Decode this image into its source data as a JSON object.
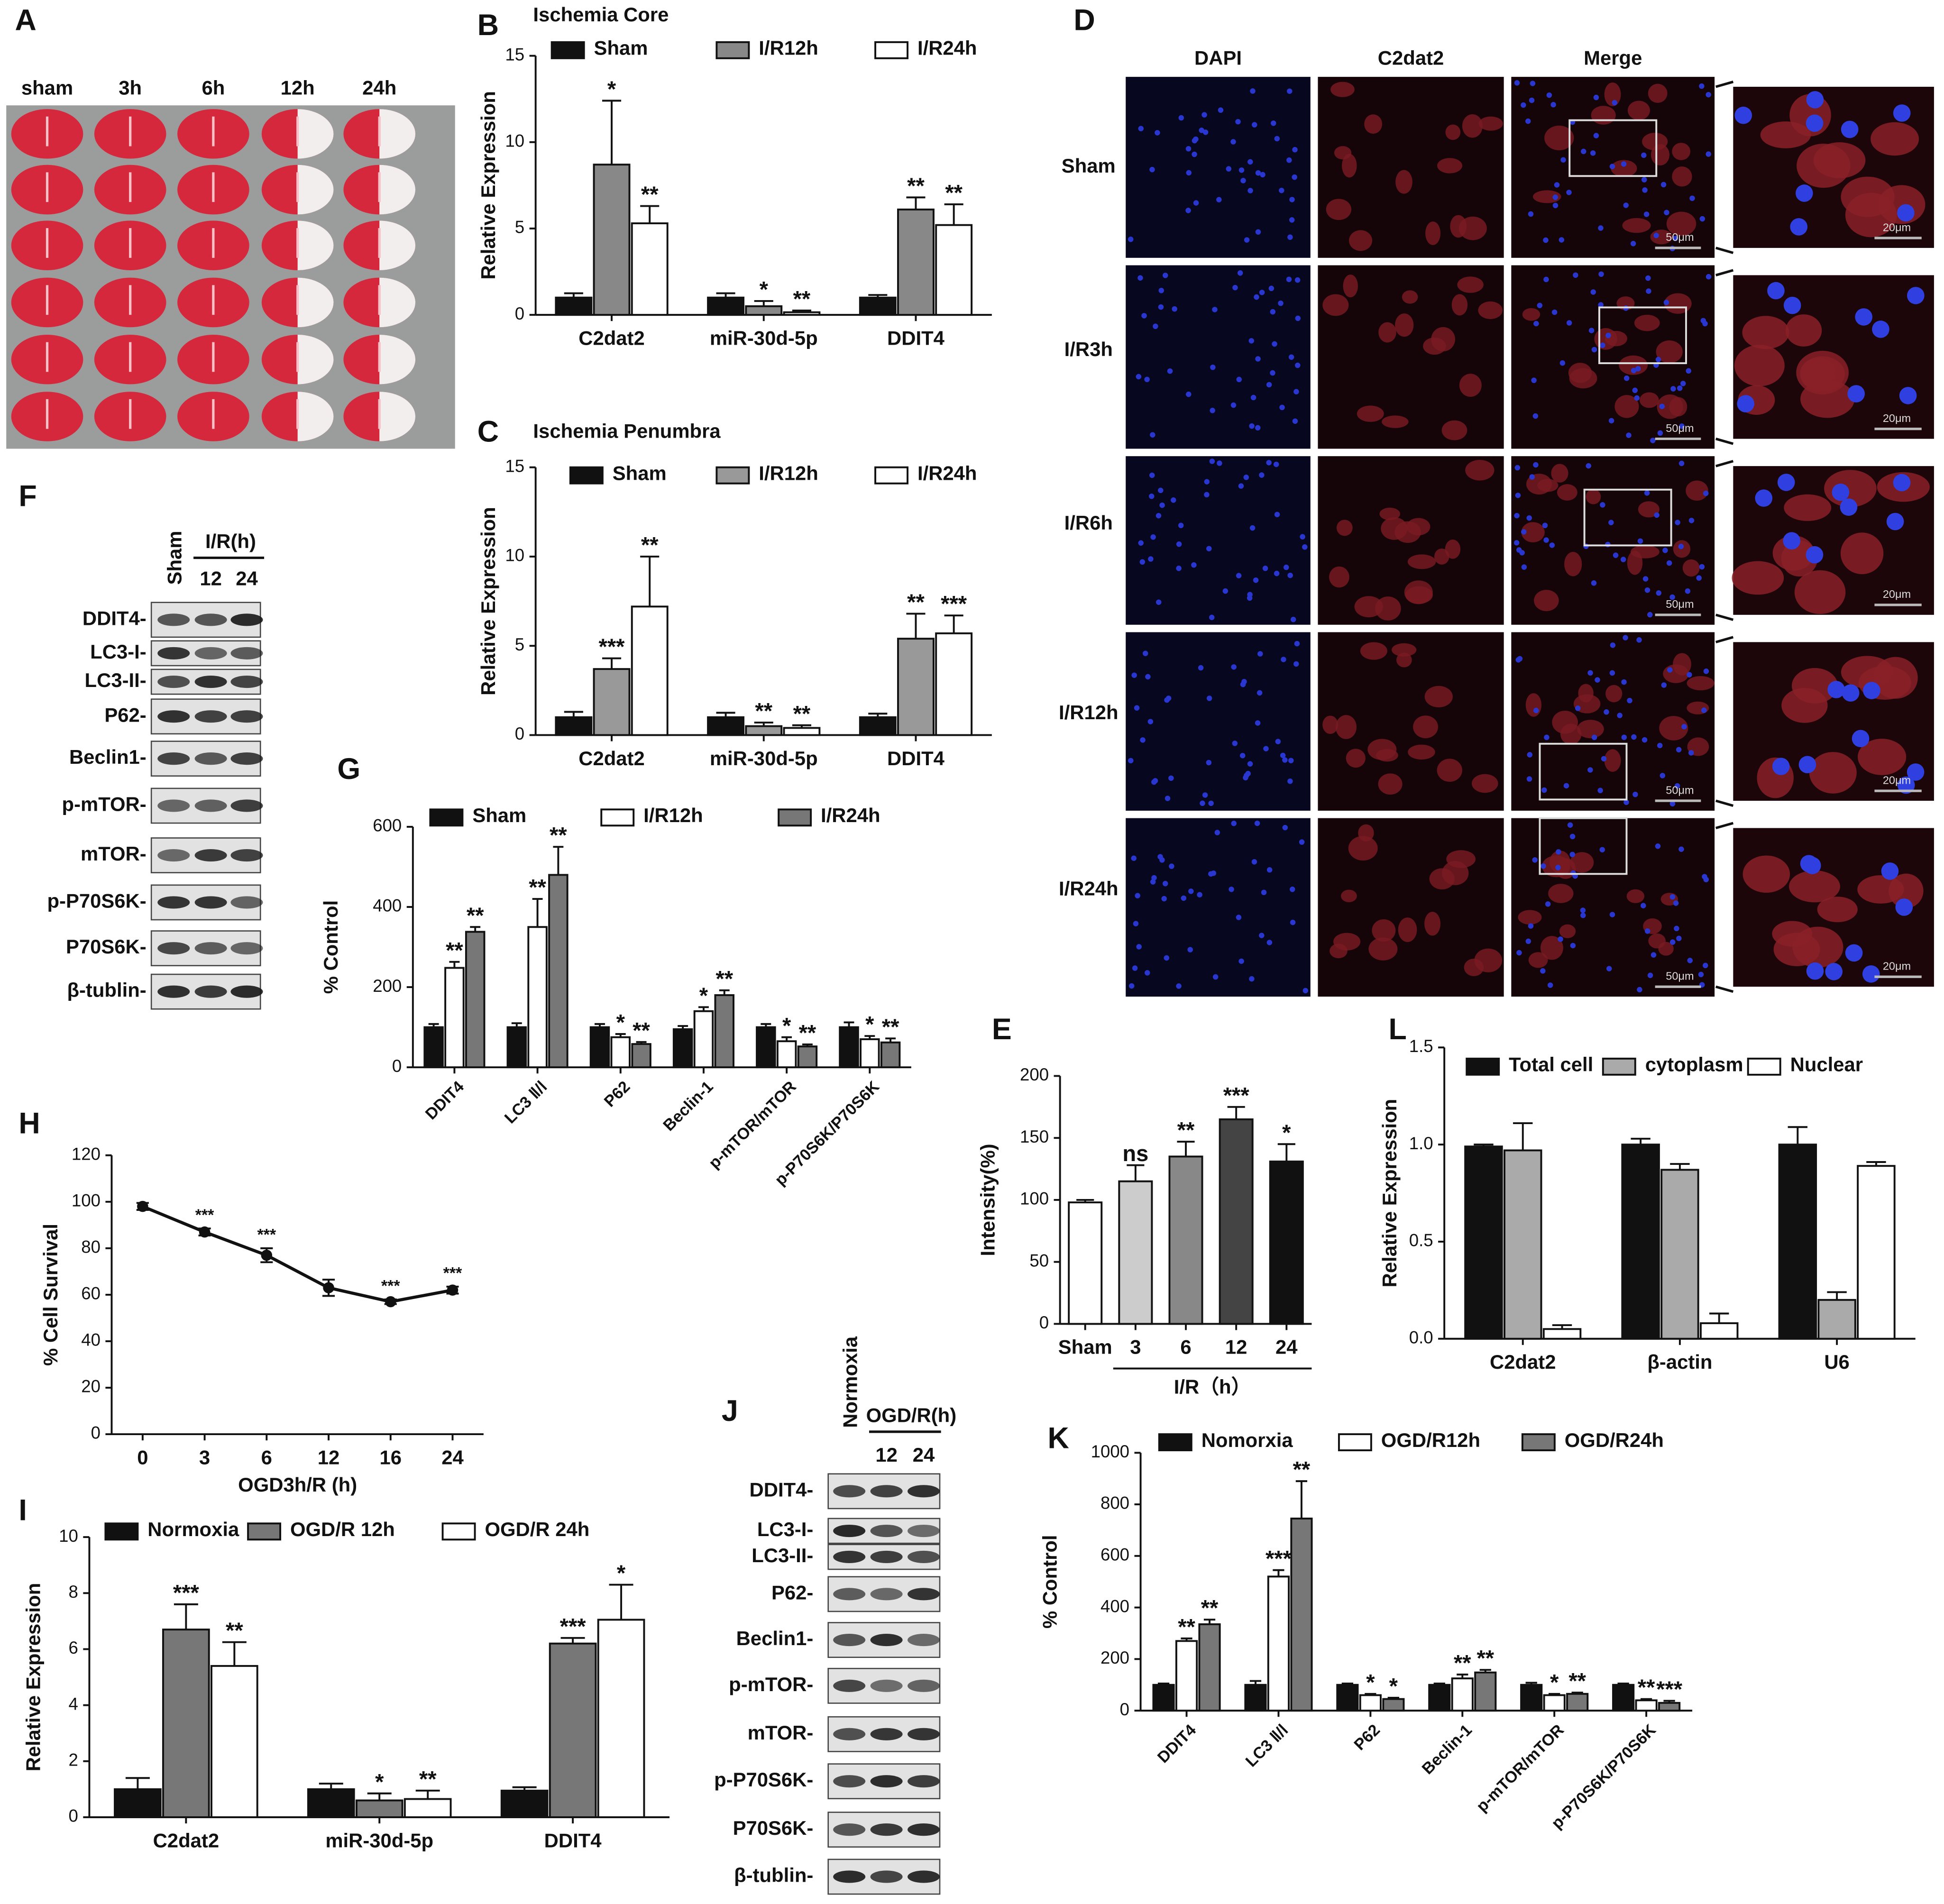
{
  "chart_data": [
    {
      "type": "bar",
      "panel": "B",
      "title": "Ischemia Core",
      "ylabel": "Relative Expression",
      "categories": [
        "C2dat2",
        "miR-30d-5p",
        "DDIT4"
      ],
      "series": [
        {
          "name": "Sham",
          "color": "#111111",
          "values": [
            1.0,
            1.0,
            1.0
          ],
          "errors": [
            0.25,
            0.25,
            0.15
          ],
          "annotations": [
            null,
            null,
            null
          ]
        },
        {
          "name": "I/R12h",
          "color": "#888888",
          "values": [
            8.7,
            0.5,
            6.1
          ],
          "errors": [
            3.7,
            0.3,
            0.7
          ],
          "annotations": [
            "*",
            "*",
            "**"
          ]
        },
        {
          "name": "I/R24h",
          "color": "#ffffff",
          "values": [
            5.3,
            0.15,
            5.2
          ],
          "errors": [
            1.0,
            0.1,
            1.2
          ],
          "annotations": [
            "**",
            "**",
            "**"
          ]
        }
      ],
      "ylim": [
        0,
        15
      ],
      "yticks": [
        0,
        5,
        10,
        15
      ],
      "legend": "top"
    },
    {
      "type": "bar",
      "panel": "C",
      "title": "Ischemia Penumbra",
      "ylabel": "Relative Expression",
      "categories": [
        "C2dat2",
        "miR-30d-5p",
        "DDIT4"
      ],
      "series": [
        {
          "name": "Sham",
          "color": "#111111",
          "values": [
            1.0,
            1.0,
            1.0
          ],
          "errors": [
            0.3,
            0.25,
            0.2
          ],
          "annotations": [
            null,
            null,
            null
          ]
        },
        {
          "name": "I/R12h",
          "color": "#999999",
          "values": [
            3.7,
            0.5,
            5.4
          ],
          "errors": [
            0.6,
            0.2,
            1.4
          ],
          "annotations": [
            "***",
            "**",
            "**"
          ]
        },
        {
          "name": "I/R24h",
          "color": "#ffffff",
          "values": [
            7.2,
            0.4,
            5.7
          ],
          "errors": [
            2.8,
            0.15,
            1.0
          ],
          "annotations": [
            "**",
            "**",
            "***"
          ]
        }
      ],
      "ylim": [
        0,
        15
      ],
      "yticks": [
        0,
        5,
        10,
        15
      ],
      "legend": "top"
    },
    {
      "type": "bar",
      "panel": "G",
      "ylabel": "% Control",
      "categories": [
        "DDIT4",
        "LC3 Ⅱ/Ⅰ",
        "P62",
        "Beclin-1",
        "p-mTOR/mTOR",
        "p-P70S6K/P70S6K"
      ],
      "series": [
        {
          "name": "Sham",
          "color": "#111111",
          "values": [
            100,
            100,
            100,
            95,
            100,
            100
          ],
          "errors": [
            8,
            10,
            8,
            8,
            8,
            12
          ],
          "annotations": [
            null,
            null,
            null,
            null,
            null,
            null
          ]
        },
        {
          "name": "I/R12h",
          "color": "#ffffff",
          "values": [
            248,
            350,
            75,
            140,
            65,
            70
          ],
          "errors": [
            15,
            70,
            8,
            10,
            10,
            8
          ],
          "annotations": [
            "**",
            "**",
            "*",
            "*",
            "*",
            "*"
          ]
        },
        {
          "name": "I/R24h",
          "color": "#777777",
          "values": [
            338,
            480,
            58,
            180,
            52,
            62
          ],
          "errors": [
            12,
            70,
            5,
            12,
            5,
            10
          ],
          "annotations": [
            "**",
            "**",
            "**",
            "**",
            "**",
            "**"
          ]
        }
      ],
      "ylim": [
        0,
        600
      ],
      "yticks": [
        0,
        200,
        400,
        600
      ],
      "legend": "top"
    },
    {
      "type": "bar",
      "panel": "E",
      "ylabel": "Intensity(%)",
      "x_group_label": "I/R（h）",
      "categories": [
        "Sham",
        "3",
        "6",
        "12",
        "24"
      ],
      "values": [
        98,
        115,
        135,
        165,
        131
      ],
      "errors": [
        2,
        13,
        12,
        10,
        14
      ],
      "annotations": [
        null,
        "ns",
        "**",
        "***",
        "*"
      ],
      "colors": [
        "#ffffff",
        "#cccccc",
        "#888888",
        "#444444",
        "#111111"
      ],
      "ylim": [
        0,
        200
      ],
      "yticks": [
        0,
        50,
        100,
        150,
        200
      ]
    },
    {
      "type": "bar",
      "panel": "L",
      "ylabel": "Relative Expression",
      "categories": [
        "C2dat2",
        "β-actin",
        "U6"
      ],
      "series": [
        {
          "name": "Total cell",
          "color": "#111111",
          "values": [
            0.99,
            1.0,
            1.0
          ],
          "errors": [
            0.01,
            0.03,
            0.09
          ]
        },
        {
          "name": "cytoplasm",
          "color": "#aaaaaa",
          "values": [
            0.97,
            0.87,
            0.2
          ],
          "errors": [
            0.14,
            0.03,
            0.04
          ]
        },
        {
          "name": "Nuclear",
          "color": "#ffffff",
          "values": [
            0.05,
            0.08,
            0.89
          ],
          "errors": [
            0.02,
            0.05,
            0.02
          ]
        }
      ],
      "ylim": [
        0,
        1.5
      ],
      "yticks": [
        {
          "value": 0,
          "label": "0.0"
        },
        0.5,
        {
          "value": 1,
          "label": "1.0"
        },
        1.5
      ],
      "legend": "top"
    },
    {
      "type": "line",
      "panel": "H",
      "ylabel": "% Cell Survival",
      "xlabel": "OGD3h/R (h)",
      "categories": [
        "0",
        "3",
        "6",
        "12",
        "16",
        "24"
      ],
      "series": [
        {
          "color": "#111111",
          "values": [
            98,
            87,
            77,
            63,
            57,
            62
          ],
          "errors": [
            1.5,
            1.5,
            3,
            3.5,
            1,
            1.5
          ],
          "annotations": [
            null,
            "***",
            "***",
            null,
            "***",
            "***"
          ]
        }
      ],
      "ylim": [
        0,
        120
      ],
      "yticks": [
        0,
        20,
        40,
        60,
        80,
        100,
        120
      ]
    },
    {
      "type": "bar",
      "panel": "I",
      "ylabel": "Relative Expression",
      "categories": [
        "C2dat2",
        "miR-30d-5p",
        "DDIT4"
      ],
      "series": [
        {
          "name": "Normoxia",
          "color": "#111111",
          "values": [
            1.0,
            1.0,
            0.95
          ],
          "errors": [
            0.4,
            0.2,
            0.12
          ],
          "annotations": [
            null,
            null,
            null
          ]
        },
        {
          "name": "OGD/R 12h",
          "color": "#777777",
          "values": [
            6.7,
            0.6,
            6.2
          ],
          "errors": [
            0.9,
            0.25,
            0.2
          ],
          "annotations": [
            "***",
            "*",
            "***"
          ]
        },
        {
          "name": "OGD/R 24h",
          "color": "#ffffff",
          "values": [
            5.4,
            0.65,
            7.05
          ],
          "errors": [
            0.85,
            0.3,
            1.25
          ],
          "annotations": [
            "**",
            "**",
            "*"
          ]
        }
      ],
      "ylim": [
        0,
        10
      ],
      "yticks": [
        0,
        2,
        4,
        6,
        8,
        10
      ],
      "legend": "top"
    },
    {
      "type": "bar",
      "panel": "K",
      "ylabel": "% Control",
      "categories": [
        "DDIT4",
        "LC3 Ⅱ/Ⅰ",
        "P62",
        "Beclin-1",
        "p-mTOR/mTOR",
        "p-P70S6K/P70S6K"
      ],
      "series": [
        {
          "name": "Nomorxia",
          "color": "#111111",
          "values": [
            100,
            100,
            100,
            100,
            100,
            100
          ],
          "errors": [
            5,
            15,
            5,
            5,
            8,
            5
          ],
          "annotations": [
            null,
            null,
            null,
            null,
            null,
            null
          ]
        },
        {
          "name": "OGD/R12h",
          "color": "#ffffff",
          "values": [
            270,
            520,
            60,
            125,
            60,
            40
          ],
          "errors": [
            10,
            25,
            5,
            15,
            5,
            5
          ],
          "annotations": [
            "**",
            "***",
            "*",
            "**",
            "*",
            "**"
          ]
        },
        {
          "name": "OGD/R24h",
          "color": "#777777",
          "values": [
            335,
            745,
            45,
            148,
            65,
            30
          ],
          "errors": [
            18,
            145,
            5,
            10,
            5,
            8
          ],
          "annotations": [
            "**",
            "**",
            "*",
            "**",
            "**",
            "***"
          ]
        }
      ],
      "ylim": [
        0,
        1000
      ],
      "yticks": [
        0,
        200,
        400,
        600,
        800,
        1000
      ],
      "legend": "top"
    }
  ],
  "figure": {
    "A": {
      "letter": "A",
      "labels": [
        "sham",
        "3h",
        "6h",
        "12h",
        "24h"
      ]
    },
    "D": {
      "letter": "D",
      "columns": [
        "DAPI",
        "C2dat2",
        "Merge"
      ],
      "rows": [
        "Sham",
        "I/R3h",
        "I/R6h",
        "I/R12h",
        "I/R24h"
      ],
      "scale_bars": [
        "50μm",
        "20μm"
      ]
    },
    "F": {
      "letter": "F",
      "columns": [
        "Sham",
        "12",
        "24"
      ],
      "group": "I/R(h)",
      "rows": [
        "DDIT4-",
        "LC3-I-",
        "LC3-II-",
        "P62-",
        "Beclin1-",
        "p-mTOR-",
        "mTOR-",
        "p-P70S6K-",
        "P70S6K-",
        "β-tublin-"
      ]
    },
    "J": {
      "letter": "J",
      "columns": [
        "Normoxia",
        "12",
        "24"
      ],
      "group": "OGD/R(h)",
      "rows": [
        "DDIT4-",
        "LC3-I-",
        "LC3-II-",
        "P62-",
        "Beclin1-",
        "p-mTOR-",
        "mTOR-",
        "p-P70S6K-",
        "P70S6K-",
        "β-tublin-"
      ]
    }
  }
}
